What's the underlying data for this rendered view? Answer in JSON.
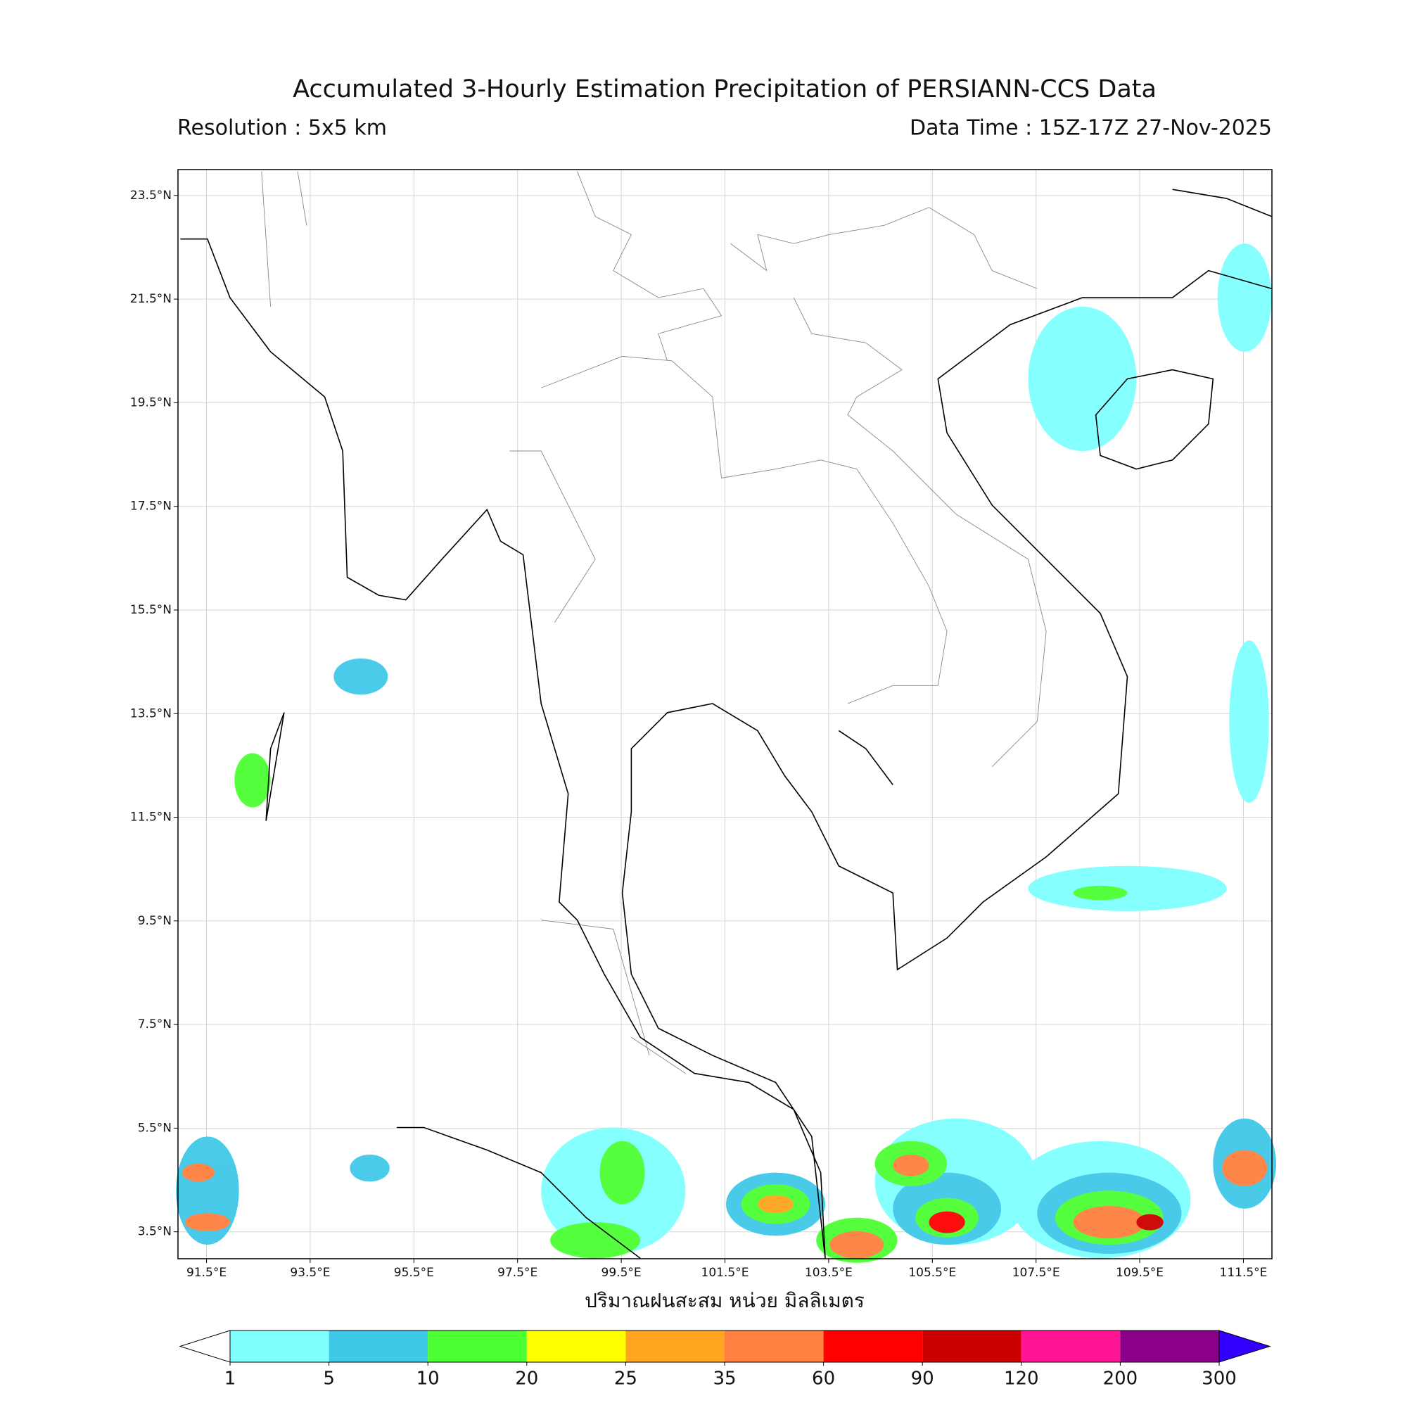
{
  "header": {
    "title": "Accumulated 3-Hourly Estimation Precipitation of PERSIANN-CCS Data",
    "resolution": "Resolution : 5x5 km",
    "data_time": "Data Time : 15Z-17Z 27-Nov-2025"
  },
  "map": {
    "lon_range": [
      90.95,
      112.05
    ],
    "lat_range": [
      2.98,
      24.0
    ],
    "lon_ticks": [
      {
        "value": 91.5,
        "label": "91.5°E"
      },
      {
        "value": 93.5,
        "label": "93.5°E"
      },
      {
        "value": 95.5,
        "label": "95.5°E"
      },
      {
        "value": 97.5,
        "label": "97.5°E"
      },
      {
        "value": 99.5,
        "label": "99.5°E"
      },
      {
        "value": 101.5,
        "label": "101.5°E"
      },
      {
        "value": 103.5,
        "label": "103.5°E"
      },
      {
        "value": 105.5,
        "label": "105.5°E"
      },
      {
        "value": 107.5,
        "label": "107.5°E"
      },
      {
        "value": 109.5,
        "label": "109.5°E"
      },
      {
        "value": 111.5,
        "label": "111.5°E"
      }
    ],
    "lat_ticks": [
      {
        "value": 23.5,
        "label": "23.5°N"
      },
      {
        "value": 21.5,
        "label": "21.5°N"
      },
      {
        "value": 19.5,
        "label": "19.5°N"
      },
      {
        "value": 17.5,
        "label": "17.5°N"
      },
      {
        "value": 15.5,
        "label": "15.5°N"
      },
      {
        "value": 13.5,
        "label": "13.5°N"
      },
      {
        "value": 11.5,
        "label": "11.5°N"
      },
      {
        "value": 9.5,
        "label": "9.5°N"
      },
      {
        "value": 7.5,
        "label": "7.5°N"
      },
      {
        "value": 5.5,
        "label": "5.5°N"
      },
      {
        "value": 3.5,
        "label": "3.5°N"
      }
    ],
    "grid": true
  },
  "colorbar": {
    "label": "ปริมาณฝนสะสม หน่วย มิลลิเมตร",
    "levels": [
      1,
      5,
      10,
      20,
      25,
      35,
      60,
      90,
      120,
      200,
      300
    ],
    "colors": [
      "#80ffff",
      "#40c8e8",
      "#4cff33",
      "#ffff00",
      "#ffa520",
      "#ff8040",
      "#ff0000",
      "#cc0000",
      "#ff1493",
      "#8b008b"
    ],
    "under_color": "#ffffff",
    "over_color": "#3300ff"
  }
}
